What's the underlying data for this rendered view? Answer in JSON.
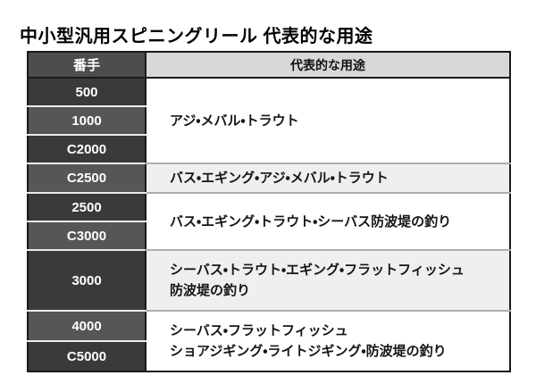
{
  "title": "中小型汎用スピニングリール 代表的な用途",
  "table": {
    "header": {
      "size_col": "番手",
      "usage_col": "代表的な用途"
    },
    "groups": [
      {
        "sizes": [
          "500",
          "1000",
          "C2000"
        ],
        "usage": "アジ・メバル・トラウト",
        "shaded": false
      },
      {
        "sizes": [
          "C2500"
        ],
        "usage": "バス・エギング・アジ・メバル・トラウト",
        "shaded": true
      },
      {
        "sizes": [
          "2500",
          "C3000"
        ],
        "usage": "バス・エギング・トラウト・シーバス防波堤の釣り",
        "shaded": false
      },
      {
        "sizes": [
          "3000"
        ],
        "usage_lines": [
          "シーバス・トラウト・エギング・フラットフィッシュ",
          "防波堤の釣り"
        ],
        "shaded": true
      },
      {
        "sizes": [
          "4000",
          "C5000"
        ],
        "usage_lines": [
          "シーバス・フラットフィッシュ",
          "ショアジギング・ライトジギング・防波堤の釣り"
        ],
        "shaded": false
      }
    ]
  },
  "colors": {
    "header_size_bg": "#4d4d4f",
    "header_usage_bg": "#d8d8d8",
    "row_dark": "#3a3a3c",
    "row_light": "#565659",
    "usage_shaded_bg": "#efefef",
    "usage_plain_bg": "#ffffff",
    "border": "#1a1a1a",
    "group_separator": "#aeaeae",
    "size_text": "#ffffff",
    "usage_text": "#161616"
  },
  "chart_data": {
    "type": "table",
    "title": "中小型汎用スピニングリール 代表的な用途",
    "columns": [
      "番手",
      "代表的な用途"
    ],
    "rows": [
      [
        "500",
        "アジ・メバル・トラウト"
      ],
      [
        "1000",
        "アジ・メバル・トラウト"
      ],
      [
        "C2000",
        "アジ・メバル・トラウト"
      ],
      [
        "C2500",
        "バス・エギング・アジ・メバル・トラウト"
      ],
      [
        "2500",
        "バス・エギング・トラウト・シーバス防波堤の釣り"
      ],
      [
        "C3000",
        "バス・エギング・トラウト・シーバス防波堤の釣り"
      ],
      [
        "3000",
        "シーバス・トラウト・エギング・フラットフィッシュ 防波堤の釣り"
      ],
      [
        "4000",
        "シーバス・フラットフィッシュ ショアジギング・ライトジギング・防波堤の釣り"
      ],
      [
        "C5000",
        "シーバス・フラットフィッシュ ショアジギング・ライトジギング・防波堤の釣り"
      ]
    ]
  }
}
